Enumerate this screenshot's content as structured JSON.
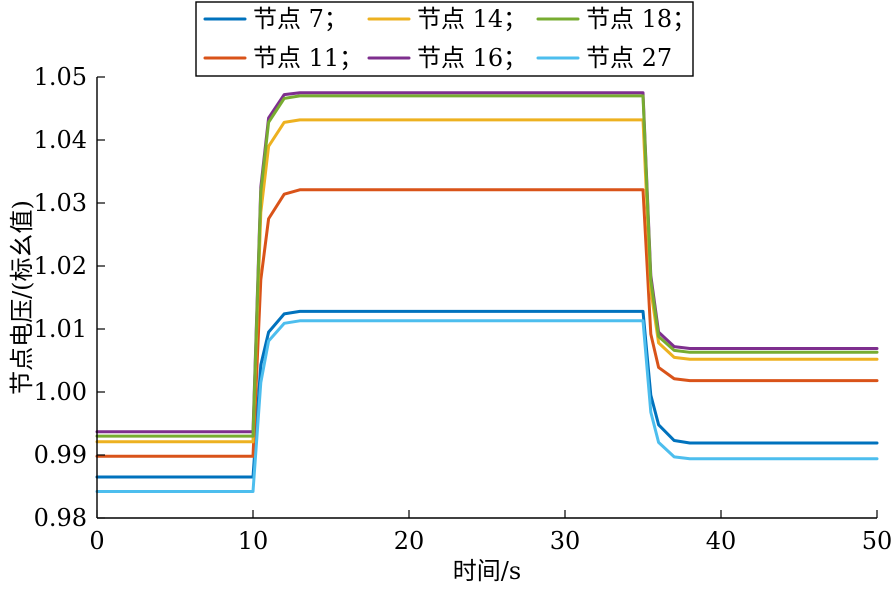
{
  "chart_data": {
    "type": "line",
    "xlabel": "时间/s",
    "ylabel": "节点电压/(标幺值)",
    "xlim": [
      0,
      50
    ],
    "ylim": [
      0.98,
      1.05
    ],
    "xticks": [
      0,
      10,
      20,
      30,
      40,
      50
    ],
    "yticks": [
      0.98,
      0.99,
      1.0,
      1.01,
      1.02,
      1.03,
      1.04,
      1.05
    ],
    "xtick_labels": [
      "0",
      "10",
      "20",
      "30",
      "40",
      "50"
    ],
    "ytick_labels": [
      "0.98",
      "0.99",
      "1.00",
      "1.01",
      "1.02",
      "1.03",
      "1.04",
      "1.05"
    ],
    "grid": false,
    "legend_placement": "top",
    "series": [
      {
        "name": "节点 7",
        "legend_label": "节点 7；",
        "color": "#0072BD",
        "x": [
          0,
          10,
          10.5,
          11,
          12,
          13,
          35,
          35.5,
          36,
          37,
          38,
          50
        ],
        "y": [
          0.9865,
          0.9865,
          1.0043,
          1.0095,
          1.0124,
          1.0128,
          1.0128,
          0.9995,
          0.9948,
          0.9923,
          0.9919,
          0.9919
        ]
      },
      {
        "name": "节点 11",
        "legend_label": "节点 11；",
        "color": "#D95319",
        "x": [
          0,
          10,
          10.5,
          11,
          12,
          13,
          35,
          35.5,
          36,
          37,
          38,
          50
        ],
        "y": [
          0.9898,
          0.9898,
          1.0178,
          1.0275,
          1.0314,
          1.0321,
          1.0321,
          1.0092,
          1.0039,
          1.0021,
          1.0018,
          1.0018
        ]
      },
      {
        "name": "节点 14",
        "legend_label": "节点 14；",
        "color": "#EDB120",
        "x": [
          0,
          10,
          10.5,
          11,
          12,
          13,
          35,
          35.5,
          36,
          37,
          38,
          50
        ],
        "y": [
          0.9921,
          0.9921,
          1.0285,
          1.039,
          1.0428,
          1.0432,
          1.0432,
          1.0162,
          1.0078,
          1.0055,
          1.0052,
          1.0052
        ]
      },
      {
        "name": "节点 16",
        "legend_label": "节点 16；",
        "color": "#7E2F8E",
        "x": [
          0,
          10,
          10.5,
          11,
          12,
          13,
          35,
          35.5,
          36,
          37,
          38,
          50
        ],
        "y": [
          0.9937,
          0.9937,
          1.0325,
          1.0435,
          1.0472,
          1.0475,
          1.0475,
          1.0185,
          1.0095,
          1.0072,
          1.0069,
          1.0069
        ]
      },
      {
        "name": "节点 18",
        "legend_label": "节点 18；",
        "color": "#77AC30",
        "x": [
          0,
          10,
          10.5,
          11,
          12,
          13,
          35,
          35.5,
          36,
          37,
          38,
          50
        ],
        "y": [
          0.993,
          0.993,
          1.0318,
          1.0428,
          1.0466,
          1.047,
          1.047,
          1.0178,
          1.0088,
          1.0066,
          1.0063,
          1.0063
        ]
      },
      {
        "name": "节点 27",
        "legend_label": "节点 27",
        "color": "#4DBEEE",
        "x": [
          0,
          10,
          10.5,
          11,
          12,
          13,
          35,
          35.5,
          36,
          37,
          38,
          50
        ],
        "y": [
          0.9842,
          0.9842,
          1.0015,
          1.0081,
          1.0109,
          1.0113,
          1.0113,
          0.9968,
          0.992,
          0.9897,
          0.9894,
          0.9894
        ]
      }
    ]
  }
}
